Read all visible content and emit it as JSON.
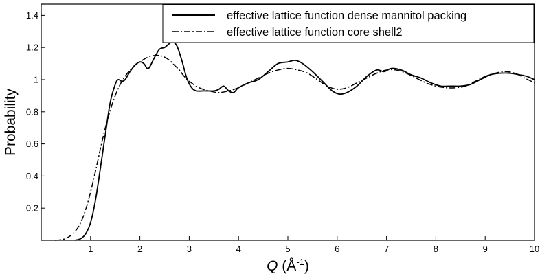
{
  "chart_data": {
    "type": "line",
    "title": "",
    "xlabel": {
      "symbol": "Q",
      "unit_open": " (Å",
      "unit_exp": "-1",
      "unit_close": ")"
    },
    "ylabel": "Probability",
    "xlim": [
      0,
      10
    ],
    "ylim": [
      0,
      1.47
    ],
    "grid": false,
    "legend_position": "top-right",
    "x_ticks": [
      {
        "value": 1,
        "label": "1"
      },
      {
        "value": 2,
        "label": "2"
      },
      {
        "value": 3,
        "label": "3"
      },
      {
        "value": 4,
        "label": "4"
      },
      {
        "value": 5,
        "label": "5"
      },
      {
        "value": 6,
        "label": "6"
      },
      {
        "value": 7,
        "label": "7"
      },
      {
        "value": 8,
        "label": "8"
      },
      {
        "value": 9,
        "label": "9"
      },
      {
        "value": 10,
        "label": "10"
      }
    ],
    "y_ticks": [
      {
        "value": 0.2,
        "label": "0.2"
      },
      {
        "value": 0.4,
        "label": "0.4"
      },
      {
        "value": 0.6,
        "label": "0.6"
      },
      {
        "value": 0.8,
        "label": "0.8"
      },
      {
        "value": 1.0,
        "label": "1"
      },
      {
        "value": 1.2,
        "label": "1.2"
      },
      {
        "value": 1.4,
        "label": "1.4"
      }
    ],
    "series": [
      {
        "name": "effective lattice function dense mannitol packing",
        "line_style": "solid",
        "color": "#000000",
        "points": [
          [
            0.68,
            0.0
          ],
          [
            0.8,
            0.01
          ],
          [
            0.9,
            0.04
          ],
          [
            1.0,
            0.11
          ],
          [
            1.1,
            0.25
          ],
          [
            1.2,
            0.45
          ],
          [
            1.3,
            0.66
          ],
          [
            1.4,
            0.86
          ],
          [
            1.5,
            0.97
          ],
          [
            1.56,
            1.0
          ],
          [
            1.63,
            0.99
          ],
          [
            1.7,
            1.0
          ],
          [
            1.8,
            1.05
          ],
          [
            1.9,
            1.09
          ],
          [
            2.0,
            1.11
          ],
          [
            2.08,
            1.1
          ],
          [
            2.15,
            1.07
          ],
          [
            2.2,
            1.08
          ],
          [
            2.3,
            1.14
          ],
          [
            2.4,
            1.19
          ],
          [
            2.5,
            1.2
          ],
          [
            2.58,
            1.22
          ],
          [
            2.66,
            1.235
          ],
          [
            2.75,
            1.21
          ],
          [
            2.85,
            1.12
          ],
          [
            2.95,
            1.01
          ],
          [
            3.05,
            0.95
          ],
          [
            3.15,
            0.93
          ],
          [
            3.3,
            0.93
          ],
          [
            3.5,
            0.93
          ],
          [
            3.6,
            0.94
          ],
          [
            3.7,
            0.96
          ],
          [
            3.8,
            0.93
          ],
          [
            3.9,
            0.92
          ],
          [
            4.0,
            0.95
          ],
          [
            4.2,
            0.98
          ],
          [
            4.4,
            1.0
          ],
          [
            4.6,
            1.05
          ],
          [
            4.8,
            1.1
          ],
          [
            5.0,
            1.11
          ],
          [
            5.15,
            1.12
          ],
          [
            5.3,
            1.1
          ],
          [
            5.5,
            1.05
          ],
          [
            5.7,
            0.99
          ],
          [
            5.9,
            0.93
          ],
          [
            6.05,
            0.91
          ],
          [
            6.2,
            0.92
          ],
          [
            6.4,
            0.96
          ],
          [
            6.6,
            1.02
          ],
          [
            6.8,
            1.06
          ],
          [
            6.95,
            1.05
          ],
          [
            7.1,
            1.07
          ],
          [
            7.3,
            1.06
          ],
          [
            7.5,
            1.03
          ],
          [
            7.7,
            1.01
          ],
          [
            7.9,
            0.98
          ],
          [
            8.1,
            0.96
          ],
          [
            8.3,
            0.96
          ],
          [
            8.5,
            0.96
          ],
          [
            8.7,
            0.97
          ],
          [
            8.9,
            1.0
          ],
          [
            9.1,
            1.03
          ],
          [
            9.3,
            1.04
          ],
          [
            9.5,
            1.04
          ],
          [
            9.7,
            1.03
          ],
          [
            9.85,
            1.02
          ],
          [
            10.0,
            1.0
          ]
        ]
      },
      {
        "name": "effective lattice function core shell2",
        "line_style": "dashdot",
        "color": "#000000",
        "points": [
          [
            0.28,
            0.0
          ],
          [
            0.4,
            0.003
          ],
          [
            0.5,
            0.012
          ],
          [
            0.6,
            0.03
          ],
          [
            0.7,
            0.06
          ],
          [
            0.8,
            0.11
          ],
          [
            0.9,
            0.19
          ],
          [
            1.0,
            0.3
          ],
          [
            1.1,
            0.43
          ],
          [
            1.2,
            0.57
          ],
          [
            1.3,
            0.7
          ],
          [
            1.4,
            0.81
          ],
          [
            1.5,
            0.9
          ],
          [
            1.6,
            0.97
          ],
          [
            1.7,
            1.02
          ],
          [
            1.8,
            1.06
          ],
          [
            1.9,
            1.09
          ],
          [
            2.0,
            1.11
          ],
          [
            2.1,
            1.13
          ],
          [
            2.2,
            1.145
          ],
          [
            2.3,
            1.15
          ],
          [
            2.4,
            1.15
          ],
          [
            2.5,
            1.14
          ],
          [
            2.6,
            1.12
          ],
          [
            2.7,
            1.09
          ],
          [
            2.8,
            1.06
          ],
          [
            2.9,
            1.02
          ],
          [
            3.0,
            0.99
          ],
          [
            3.2,
            0.95
          ],
          [
            3.4,
            0.93
          ],
          [
            3.6,
            0.92
          ],
          [
            3.8,
            0.93
          ],
          [
            4.0,
            0.95
          ],
          [
            4.2,
            0.98
          ],
          [
            4.4,
            1.01
          ],
          [
            4.6,
            1.04
          ],
          [
            4.8,
            1.06
          ],
          [
            5.0,
            1.07
          ],
          [
            5.2,
            1.06
          ],
          [
            5.4,
            1.04
          ],
          [
            5.6,
            1.0
          ],
          [
            5.8,
            0.96
          ],
          [
            6.0,
            0.94
          ],
          [
            6.2,
            0.95
          ],
          [
            6.4,
            0.98
          ],
          [
            6.6,
            1.01
          ],
          [
            6.8,
            1.04
          ],
          [
            7.0,
            1.06
          ],
          [
            7.2,
            1.06
          ],
          [
            7.4,
            1.04
          ],
          [
            7.6,
            1.01
          ],
          [
            7.8,
            0.98
          ],
          [
            8.0,
            0.96
          ],
          [
            8.2,
            0.95
          ],
          [
            8.4,
            0.95
          ],
          [
            8.6,
            0.96
          ],
          [
            8.8,
            0.99
          ],
          [
            9.0,
            1.02
          ],
          [
            9.2,
            1.04
          ],
          [
            9.4,
            1.05
          ],
          [
            9.6,
            1.04
          ],
          [
            9.8,
            1.01
          ],
          [
            10.0,
            0.98
          ]
        ]
      }
    ]
  }
}
